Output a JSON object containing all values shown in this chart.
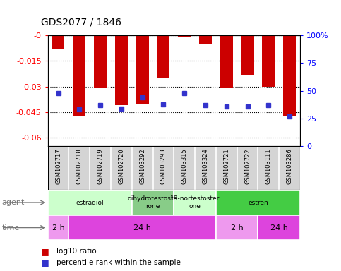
{
  "title": "GDS2077 / 1846",
  "samples": [
    "GSM102717",
    "GSM102718",
    "GSM102719",
    "GSM102720",
    "GSM103292",
    "GSM103293",
    "GSM103315",
    "GSM103324",
    "GSM102721",
    "GSM102722",
    "GSM103111",
    "GSM103286"
  ],
  "log10_ratio": [
    -0.008,
    -0.047,
    -0.031,
    -0.041,
    -0.04,
    -0.025,
    -0.001,
    -0.005,
    -0.031,
    -0.023,
    -0.03,
    -0.047
  ],
  "percentile_rank": [
    48,
    33,
    37,
    34,
    44,
    38,
    48,
    37,
    36,
    36,
    37,
    27
  ],
  "ylim": [
    -0.065,
    0.0
  ],
  "yticks": [
    0.0,
    -0.015,
    -0.03,
    -0.045,
    -0.06
  ],
  "ytick_labels": [
    "-0",
    "-0.015",
    "-0.03",
    "-0.045",
    "-0.06"
  ],
  "right_ytick_percents": [
    0,
    25,
    50,
    75,
    100
  ],
  "right_ytick_labels": [
    "0",
    "25",
    "50",
    "75",
    "100%"
  ],
  "bar_color": "#cc0000",
  "dot_color": "#3333cc",
  "agent_groups": [
    {
      "label": "estradiol",
      "start": 0,
      "end": 4,
      "color": "#ccffcc"
    },
    {
      "label": "dihydrotestoste\nrone",
      "start": 4,
      "end": 6,
      "color": "#88cc88"
    },
    {
      "label": "19-nortestoster\none",
      "start": 6,
      "end": 8,
      "color": "#ccffcc"
    },
    {
      "label": "estren",
      "start": 8,
      "end": 12,
      "color": "#44cc44"
    }
  ],
  "time_groups": [
    {
      "label": "2 h",
      "start": 0,
      "end": 1,
      "color": "#ee99ee"
    },
    {
      "label": "24 h",
      "start": 1,
      "end": 8,
      "color": "#dd44dd"
    },
    {
      "label": "2 h",
      "start": 8,
      "end": 10,
      "color": "#ee99ee"
    },
    {
      "label": "24 h",
      "start": 10,
      "end": 12,
      "color": "#dd44dd"
    }
  ],
  "legend_red_label": "log10 ratio",
  "legend_blue_label": "percentile rank within the sample",
  "agent_label": "agent",
  "time_label": "time",
  "figsize": [
    4.83,
    3.84
  ],
  "dpi": 100
}
